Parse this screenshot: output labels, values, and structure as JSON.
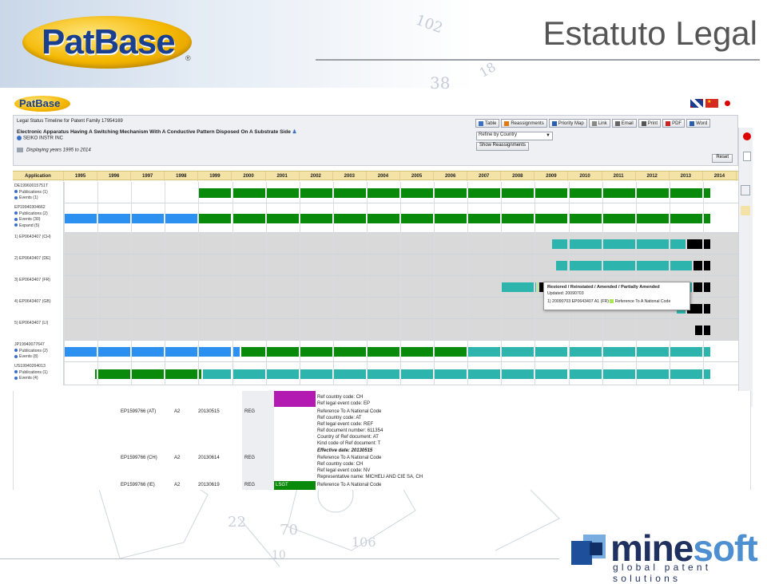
{
  "slide": {
    "title": "Estatuto Legal",
    "logo_text": "PatBase",
    "logo_reg": "®"
  },
  "app": {
    "logo_text": "PatBase",
    "header": {
      "timeline_title": "Legal Status Timeline for Patent Family 17954169",
      "family_title": "Electronic Apparatus Having A Switching Mechanism With A Conductive Pattern Disposed On A Substrate Side",
      "assignee": "SEIKO INSTR INC",
      "years_text": "Displaying years 1995 to 2014"
    },
    "toolbar": [
      {
        "label": "Table",
        "icon": "table-icon",
        "color": "#3b6fc4"
      },
      {
        "label": "Reassignments",
        "icon": "arrow-icon",
        "color": "#e07a10"
      },
      {
        "label": "Priority Map",
        "icon": "map-icon",
        "color": "#2a5db0"
      },
      {
        "label": "Link",
        "icon": "link-icon",
        "color": "#888888"
      },
      {
        "label": "Email",
        "icon": "email-icon",
        "color": "#666666"
      },
      {
        "label": "Print",
        "icon": "print-icon",
        "color": "#555555"
      },
      {
        "label": "PDF",
        "icon": "pdf-icon",
        "color": "#cc2222"
      },
      {
        "label": "Word",
        "icon": "word-icon",
        "color": "#2a5db0"
      }
    ],
    "refine_value": "Refine by Country",
    "show_reassignments": "Show Reassignments",
    "reset": "Reset"
  },
  "timeline": {
    "header_label": "Application",
    "years": [
      "1995",
      "1996",
      "1997",
      "1998",
      "1999",
      "2000",
      "2001",
      "2002",
      "2003",
      "2004",
      "2005",
      "2006",
      "2007",
      "2008",
      "2009",
      "2010",
      "2011",
      "2012",
      "2013",
      "2014"
    ],
    "colors": {
      "green": "#0a8a0a",
      "blue": "#2b90f0",
      "teal": "#2db5ad",
      "black": "#000000",
      "gray": "#d9d9d9",
      "lime": "#a8e84a"
    },
    "rows": [
      {
        "id": "DE19960015751T",
        "lines": [
          "DE19960015751T",
          "Publications (1)",
          "Events (1)"
        ],
        "bg": "white",
        "segments": [
          {
            "from": 1999,
            "to": 2014.25,
            "color": "green"
          }
        ]
      },
      {
        "id": "EP19940304662",
        "lines": [
          "EP19940304662",
          "Publications (2)",
          "Events (30)",
          "Expand (5)"
        ],
        "bg": "white",
        "segments": [
          {
            "from": 1995,
            "to": 1999,
            "color": "blue"
          },
          {
            "from": 1999,
            "to": 2014.25,
            "color": "green"
          }
        ]
      },
      {
        "id": "EP0643407 (CH)",
        "lines": [
          "1) EP0643407 (CH)"
        ],
        "bg": "gray",
        "segments": [
          {
            "from": 2009.5,
            "to": 2013.5,
            "color": "teal"
          },
          {
            "from": 2013.5,
            "to": 2014.25,
            "color": "black"
          }
        ]
      },
      {
        "id": "EP0643407 (DE)",
        "lines": [
          "2) EP0643407 (DE)"
        ],
        "bg": "gray",
        "segments": [
          {
            "from": 2009.6,
            "to": 2013.7,
            "color": "teal"
          },
          {
            "from": 2013.7,
            "to": 2014.25,
            "color": "black"
          }
        ]
      },
      {
        "id": "EP0643407 (FR)",
        "lines": [
          "3) EP0643407 (FR)"
        ],
        "bg": "gray",
        "segments": [
          {
            "from": 2008,
            "to": 2009.05,
            "color": "teal"
          },
          {
            "from": 2009.05,
            "to": 2009.1,
            "color": "lime"
          },
          {
            "from": 2009.1,
            "to": 2009.5,
            "color": "black"
          },
          {
            "from": 2009.5,
            "to": 2009.55,
            "color": "teal"
          },
          {
            "from": 2009.55,
            "to": 2010,
            "color": "black"
          },
          {
            "from": 2010,
            "to": 2013.7,
            "color": "teal"
          },
          {
            "from": 2013.7,
            "to": 2014.25,
            "color": "black"
          }
        ]
      },
      {
        "id": "EP0643407 (GB)",
        "lines": [
          "4) EP0643407 (GB)"
        ],
        "bg": "gray",
        "segments": [
          {
            "from": 2013.2,
            "to": 2013.5,
            "color": "teal"
          },
          {
            "from": 2013.5,
            "to": 2014.25,
            "color": "black"
          }
        ]
      },
      {
        "id": "EP0643407 (LI)",
        "lines": [
          "5) EP0643407 (LI)"
        ],
        "bg": "gray",
        "segments": [
          {
            "from": 2013.75,
            "to": 2014.25,
            "color": "black"
          }
        ]
      },
      {
        "id": "JP19940077647",
        "lines": [
          "JP19940077647",
          "Publications (2)",
          "Events (8)"
        ],
        "bg": "white",
        "segments": [
          {
            "from": 1995,
            "to": 2000.25,
            "color": "blue"
          },
          {
            "from": 2000.25,
            "to": 2007,
            "color": "green"
          },
          {
            "from": 2007,
            "to": 2014.25,
            "color": "teal"
          }
        ]
      },
      {
        "id": "US19940264013",
        "lines": [
          "US19940264013",
          "Publications (1)",
          "Events (4)"
        ],
        "bg": "white",
        "segments": [
          {
            "from": 1995.9,
            "to": 1999.1,
            "color": "green"
          },
          {
            "from": 1999.1,
            "to": 2014.25,
            "color": "teal"
          }
        ]
      }
    ],
    "tooltip": {
      "title": "Restored / Reinstated / Amended / Partially Amended",
      "updated": "Updated: 20090703",
      "detail": "1) 20090703 EP0643407 A1 (FR)",
      "legend": "Reference To A National Code"
    }
  },
  "lower_table": {
    "rows": [
      {
        "pub": "",
        "kind": "",
        "date": "",
        "code": "",
        "text": [
          "Ref country code: CH",
          "Ref legal event code: EP"
        ]
      },
      {
        "pub": "EP1599766 (AT)",
        "kind": "A2",
        "date": "20130515",
        "code": "REG",
        "text": [
          "Reference To A National Code",
          "Ref country code: AT",
          "Ref legal event code: REF",
          "Ref document number: 611354",
          "Country of Ref document: AT",
          "Kind code of Ref document: T",
          "Effective date: 20130515"
        ]
      },
      {
        "pub": "EP1599766 (CH)",
        "kind": "A2",
        "date": "20130614",
        "code": "REG",
        "text": [
          "Reference To A National Code",
          "Ref country code: CH",
          "Ref legal event code: NV",
          "Representative name: MICHELI AND CIE SA, CH"
        ]
      },
      {
        "pub": "EP1599766 (IE)",
        "kind": "A2",
        "date": "20130619",
        "code": "REG",
        "text": [
          "Reference To A National Code"
        ],
        "tag": "LSGT"
      }
    ]
  },
  "brand": {
    "name_a": "mine",
    "name_b": "soft",
    "tagline": "global patent solutions"
  }
}
